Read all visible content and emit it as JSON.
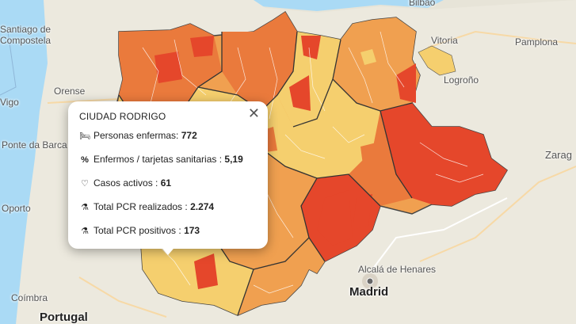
{
  "map": {
    "cities": [
      {
        "name": "Santiago de Compostela",
        "lines": [
          "Santiago de",
          "Compostela"
        ]
      },
      {
        "name": "Orense",
        "lines": [
          "Orense"
        ]
      },
      {
        "name": "Vigo",
        "lines": [
          "Vigo"
        ]
      },
      {
        "name": "Ponte da Barca",
        "lines": [
          "Ponte da Barca"
        ]
      },
      {
        "name": "Oporto",
        "lines": [
          "Oporto"
        ]
      },
      {
        "name": "Coímbra",
        "lines": [
          "Coímbra"
        ]
      },
      {
        "name": "Bilbao",
        "lines": [
          "Bilbao"
        ]
      },
      {
        "name": "Vitoria",
        "lines": [
          "Vitoria"
        ]
      },
      {
        "name": "Pamplona",
        "lines": [
          "Pamplona"
        ]
      },
      {
        "name": "Logroño",
        "lines": [
          "Logroño"
        ]
      },
      {
        "name": "Zaragoza",
        "lines": [
          "Zarag"
        ]
      },
      {
        "name": "Alcalá de Henares",
        "lines": [
          "Alcalá de Henares"
        ]
      }
    ],
    "country_labels": [
      "Portugal"
    ],
    "capital_label": "Madrid",
    "choropleth_colors": {
      "light": "#f5cf6e",
      "mid": "#f0a050",
      "orange": "#ea7a3c",
      "red": "#e5472b"
    }
  },
  "popup": {
    "title": "CIUDAD RODRIGO",
    "close_icon": "close-icon",
    "rows": [
      {
        "icon": "bed-icon",
        "label": "Personas enfermas:",
        "value": "772"
      },
      {
        "icon": "percent-icon",
        "label": "Enfermos / tarjetas sanitarias :",
        "value": "5,19"
      },
      {
        "icon": "heartbeat-icon",
        "label": "Casos activos :",
        "value": "61"
      },
      {
        "icon": "flask-icon",
        "label": "Total PCR realizados :",
        "value": "2.274"
      },
      {
        "icon": "flask-icon",
        "label": "Total PCR positivos :",
        "value": "173"
      }
    ]
  }
}
